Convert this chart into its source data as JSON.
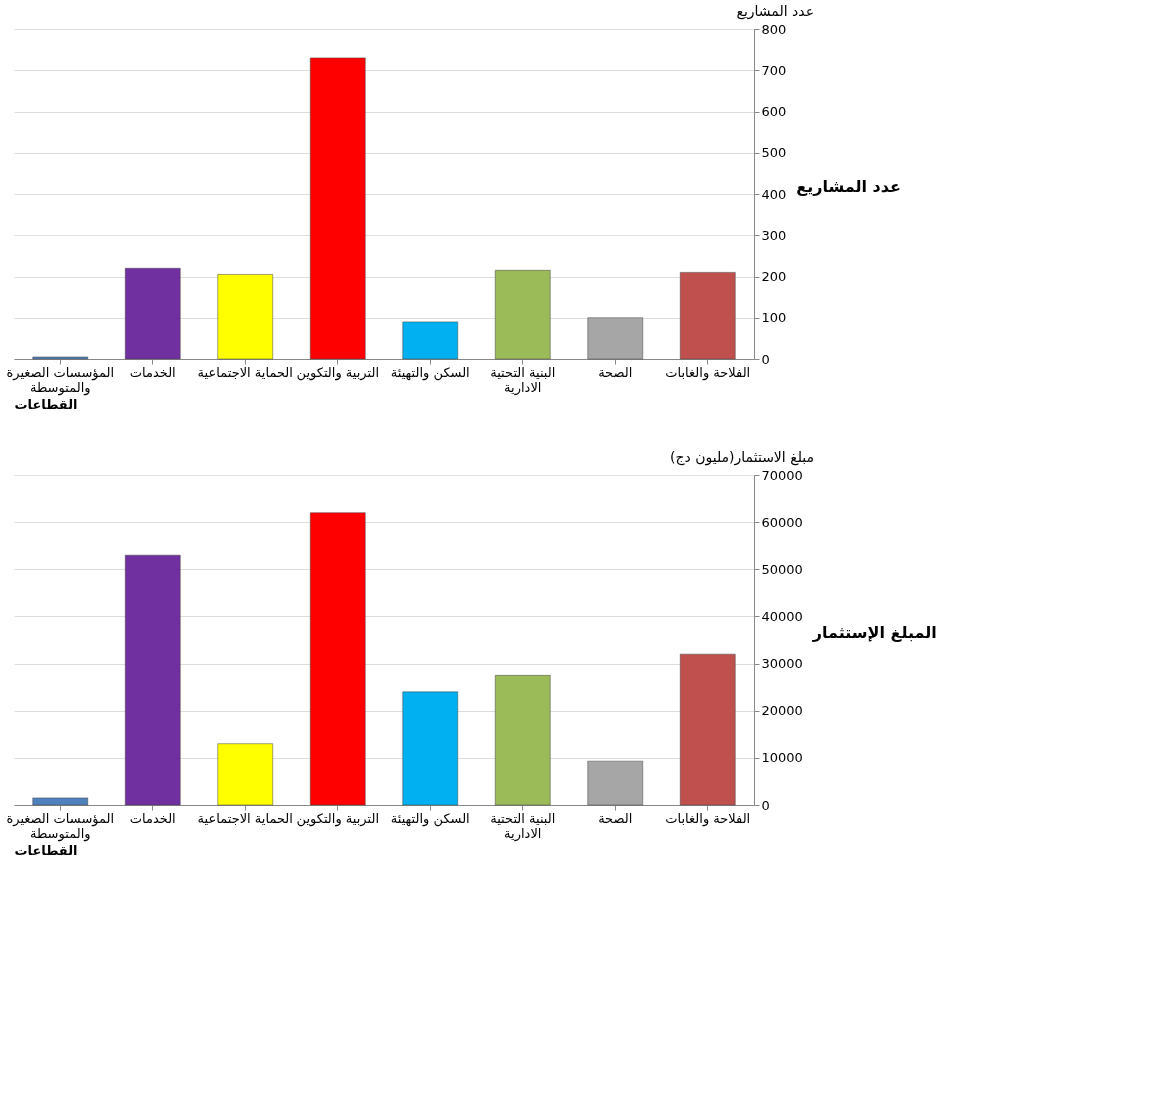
{
  "chart_data": [
    {
      "type": "bar",
      "title": "عدد المشاريع",
      "xlabel": "القطاعات",
      "ylabel": "عدد المشاريع",
      "categories": [
        "المؤسسات الصغيرة والمتوسطة",
        "الخدمات",
        "الحماية الاجتماعية",
        "التربية والتكوين",
        "السكن والتهيئة",
        "البنية التحتية الادارية",
        "الصحة",
        "الفلاحة والغابات"
      ],
      "values": [
        5,
        220,
        205,
        730,
        90,
        215,
        100,
        210
      ],
      "colors": [
        "#4f81bd",
        "#7030a0",
        "#ffff00",
        "#ff0000",
        "#00b0f0",
        "#9bbb59",
        "#a6a6a6",
        "#c0504d"
      ],
      "ylim": [
        0,
        800
      ],
      "yticks": [
        0,
        100,
        200,
        300,
        400,
        500,
        600,
        700,
        800
      ],
      "grid": "y"
    },
    {
      "type": "bar",
      "title": "مبلغ الاستثمار(مليون دج)",
      "xlabel": "القطاعات",
      "ylabel": "المبلغ الإستثمار",
      "categories": [
        "المؤسسات الصغيرة والمتوسطة",
        "الخدمات",
        "الحماية الاجتماعية",
        "التربية والتكوين",
        "السكن والتهيئة",
        "البنية التحتية الادارية",
        "الصحة",
        "الفلاحة والغابات"
      ],
      "values": [
        1500,
        53000,
        13000,
        62000,
        24000,
        27500,
        9300,
        32000
      ],
      "colors": [
        "#4f81bd",
        "#7030a0",
        "#ffff00",
        "#ff0000",
        "#00b0f0",
        "#9bbb59",
        "#a6a6a6",
        "#c0504d"
      ],
      "ylim": [
        0,
        70000
      ],
      "yticks": [
        0,
        10000,
        20000,
        30000,
        40000,
        50000,
        60000,
        70000
      ],
      "grid": "y"
    }
  ]
}
